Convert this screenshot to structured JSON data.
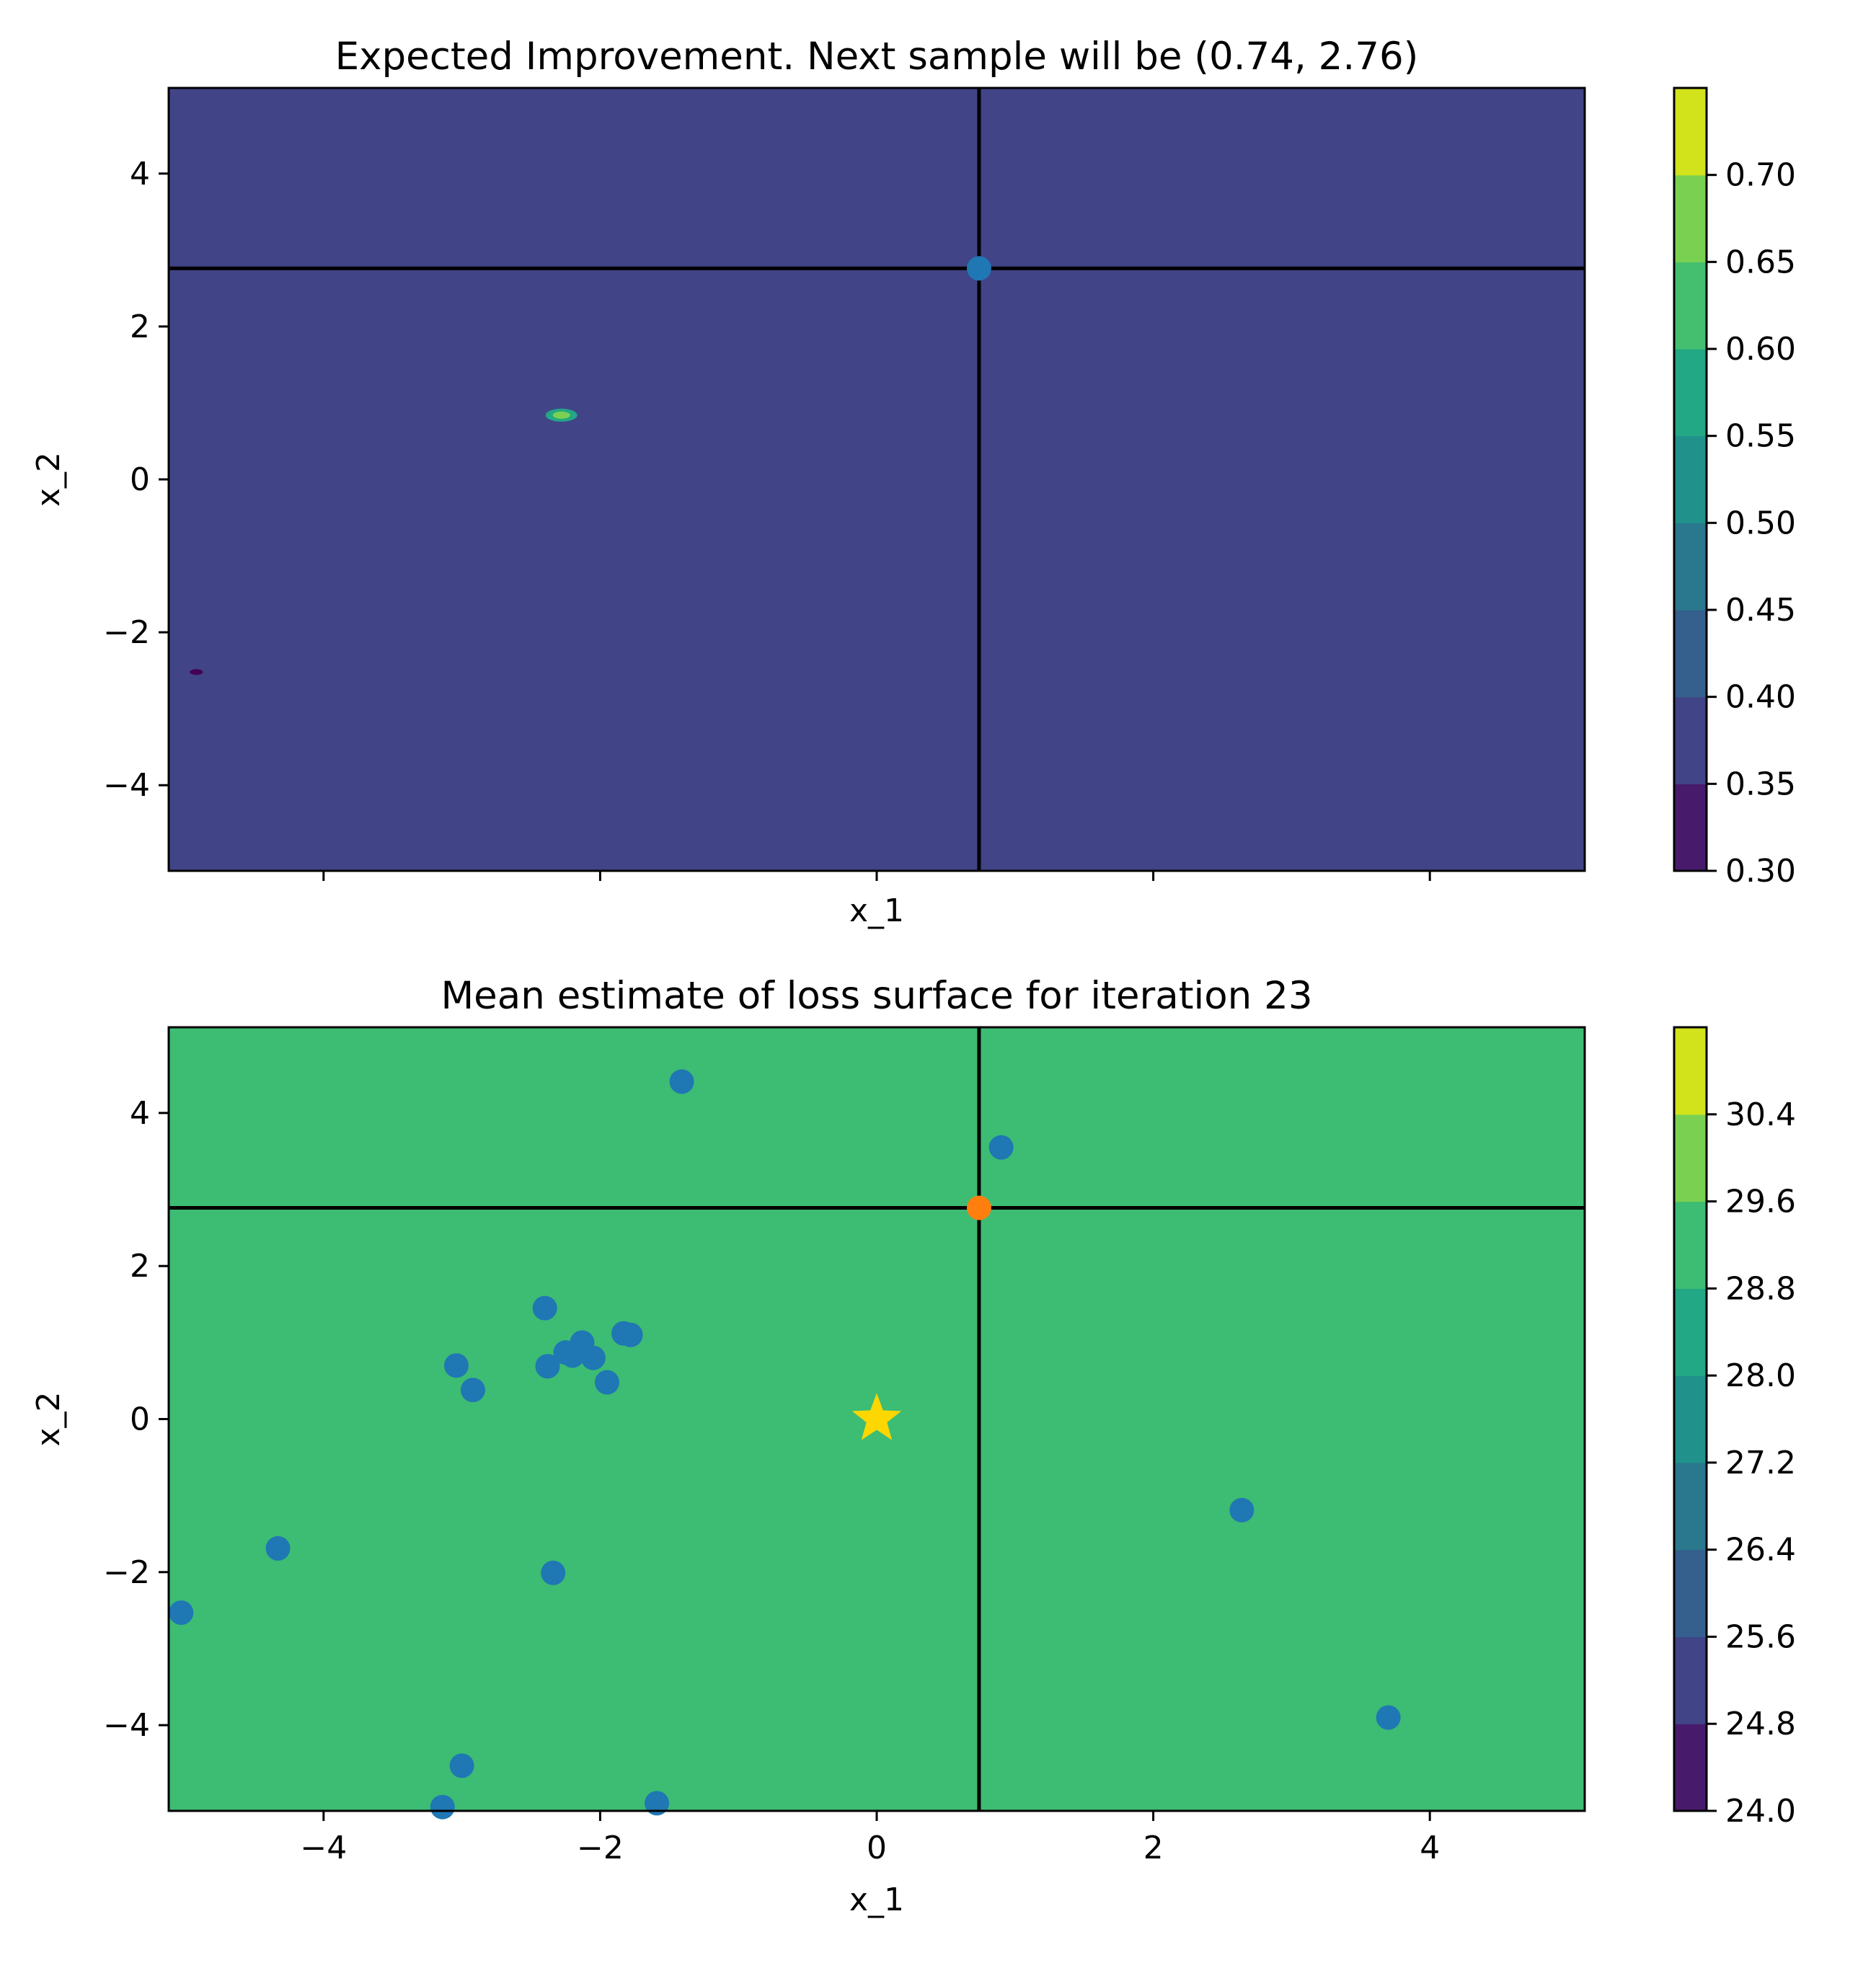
{
  "chart_data": [
    {
      "type": "contour",
      "title": "Expected Improvement. Next sample will be (0.74, 2.76)",
      "xlabel": "x_1",
      "ylabel": "x_2",
      "xlim": [
        -5.12,
        5.12
      ],
      "ylim": [
        -5.12,
        5.12
      ],
      "show_xtick_labels": false,
      "xticks": [
        -4,
        -2,
        0,
        2,
        4
      ],
      "yticks": [
        -4,
        -2,
        0,
        2,
        4
      ],
      "ytick_labels": [
        "−4",
        "−2",
        "0",
        "2",
        "4"
      ],
      "fill_color": "#414487",
      "crosshair": {
        "x": 0.74,
        "y": 2.76,
        "color": "#000000"
      },
      "points": [
        {
          "x": 0.74,
          "y": 2.76,
          "color": "#1f77b4"
        }
      ],
      "features": [
        {
          "kind": "peak",
          "x": -2.28,
          "y": 0.84,
          "colors": [
            "#22a884",
            "#7ad151"
          ]
        },
        {
          "kind": "dip",
          "x": -4.92,
          "y": -2.52,
          "color": "#440154"
        }
      ],
      "colorbar": {
        "levels": [
          0.3,
          0.35,
          0.4,
          0.45,
          0.5,
          0.55,
          0.6,
          0.65,
          0.7
        ],
        "labels": [
          "0.30",
          "0.35",
          "0.40",
          "0.45",
          "0.50",
          "0.55",
          "0.60",
          "0.65",
          "0.70"
        ],
        "colors": [
          "#481a6c",
          "#414487",
          "#355f8d",
          "#2a788e",
          "#21918c",
          "#22a884",
          "#44bf70",
          "#7ad151",
          "#d2e21b"
        ]
      }
    },
    {
      "type": "contour",
      "title": "Mean estimate of loss surface for iteration 23",
      "xlabel": "x_1",
      "ylabel": "x_2",
      "xlim": [
        -5.12,
        5.12
      ],
      "ylim": [
        -5.12,
        5.12
      ],
      "show_xtick_labels": true,
      "xticks": [
        -4,
        -2,
        0,
        2,
        4
      ],
      "xtick_labels": [
        "−4",
        "−2",
        "0",
        "2",
        "4"
      ],
      "yticks": [
        -4,
        -2,
        0,
        2,
        4
      ],
      "ytick_labels": [
        "−4",
        "−2",
        "0",
        "2",
        "4"
      ],
      "fill_color": "#3dbc74",
      "crosshair": {
        "x": 0.74,
        "y": 2.76,
        "color": "#000000"
      },
      "sampled_points": [
        {
          "x": -1.41,
          "y": 4.41
        },
        {
          "x": 0.9,
          "y": 3.55
        },
        {
          "x": -2.4,
          "y": 1.45
        },
        {
          "x": -1.83,
          "y": 1.12
        },
        {
          "x": -1.78,
          "y": 1.1
        },
        {
          "x": -2.13,
          "y": 1.0
        },
        {
          "x": -2.25,
          "y": 0.87
        },
        {
          "x": -2.2,
          "y": 0.83
        },
        {
          "x": -2.05,
          "y": 0.8
        },
        {
          "x": -2.38,
          "y": 0.69
        },
        {
          "x": -3.04,
          "y": 0.7
        },
        {
          "x": -1.95,
          "y": 0.48
        },
        {
          "x": -2.92,
          "y": 0.38
        },
        {
          "x": 2.64,
          "y": -1.19
        },
        {
          "x": -4.33,
          "y": -1.69
        },
        {
          "x": -2.34,
          "y": -2.01
        },
        {
          "x": -5.03,
          "y": -2.53
        },
        {
          "x": 3.7,
          "y": -3.9
        },
        {
          "x": -3.0,
          "y": -4.53
        },
        {
          "x": -3.14,
          "y": -5.07
        },
        {
          "x": -1.59,
          "y": -5.02
        }
      ],
      "sampled_color": "#1f77b4",
      "next_point": {
        "x": 0.74,
        "y": 2.76,
        "color": "#ff7f0e"
      },
      "optimum": {
        "x": 0.0,
        "y": 0.0,
        "marker": "star",
        "color": "#ffd700"
      },
      "colorbar": {
        "levels": [
          24.0,
          24.8,
          25.6,
          26.4,
          27.2,
          28.0,
          28.8,
          29.6,
          30.4
        ],
        "labels": [
          "24.0",
          "24.8",
          "25.6",
          "26.4",
          "27.2",
          "28.0",
          "28.8",
          "29.6",
          "30.4"
        ],
        "colors": [
          "#481a6c",
          "#414487",
          "#355f8d",
          "#2a788e",
          "#21918c",
          "#22a884",
          "#3dbc74",
          "#7ad151",
          "#d2e21b"
        ]
      }
    }
  ]
}
